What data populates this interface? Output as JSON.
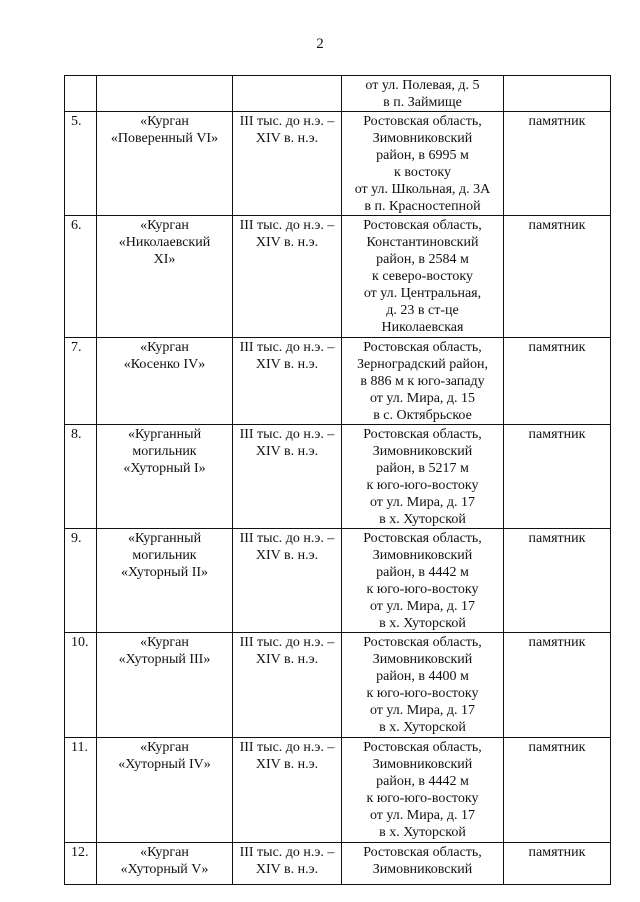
{
  "page_number": "2",
  "table": {
    "rows": [
      {
        "location": [
          "от ул. Полевая, д. 5",
          "в п. Займище"
        ]
      },
      {
        "number": "5.",
        "name": [
          "«Курган",
          "«Поверенный VI»"
        ],
        "date": [
          "III тыс. до н.э. –",
          "XIV в. н.э."
        ],
        "location": [
          "Ростовская область,",
          "Зимовниковский",
          "район, в 6995 м",
          "к востоку",
          "от ул. Школьная, д. 3А",
          "в п. Красностепной"
        ],
        "status": [
          "памятник"
        ]
      },
      {
        "number": "6.",
        "name": [
          "«Курган",
          "«Николаевский",
          "XI»"
        ],
        "date": [
          "III тыс. до н.э. –",
          "XIV в. н.э."
        ],
        "location": [
          "Ростовская область,",
          "Константиновский",
          "район, в 2584 м",
          "к северо-востоку",
          "от ул. Центральная,",
          "д. 23 в ст-це",
          "Николаевская"
        ],
        "status": [
          "памятник"
        ]
      },
      {
        "number": "7.",
        "name": [
          "«Курган",
          "«Косенко IV»"
        ],
        "date": [
          "III тыс. до н.э. –",
          "XIV в. н.э."
        ],
        "location": [
          "Ростовская область,",
          "Зерноградский район,",
          "в 886 м к юго-западу",
          "от ул. Мира, д. 15",
          "в с. Октябрьское"
        ],
        "status": [
          "памятник"
        ]
      },
      {
        "number": "8.",
        "name": [
          "«Курганный",
          "могильник",
          "«Хуторный I»"
        ],
        "date": [
          "III тыс. до н.э. –",
          "XIV в. н.э."
        ],
        "location": [
          "Ростовская область,",
          "Зимовниковский",
          "район, в 5217 м",
          "к юго-юго-востоку",
          "от ул. Мира, д. 17",
          "в х. Хуторской"
        ],
        "status": [
          "памятник"
        ]
      },
      {
        "number": "9.",
        "name": [
          "«Курганный",
          "могильник",
          "«Хуторный II»"
        ],
        "date": [
          "III тыс. до н.э. –",
          "XIV в. н.э."
        ],
        "location": [
          "Ростовская область,",
          "Зимовниковский",
          "район, в 4442 м",
          "к юго-юго-востоку",
          "от ул. Мира, д. 17",
          "в х. Хуторской"
        ],
        "status": [
          "памятник"
        ]
      },
      {
        "number": "10.",
        "name": [
          "«Курган",
          "«Хуторный III»"
        ],
        "date": [
          "III тыс. до н.э. –",
          "XIV в. н.э."
        ],
        "location": [
          "Ростовская область,",
          "Зимовниковский",
          "район, в 4400 м",
          "к юго-юго-востоку",
          "от ул. Мира, д. 17",
          "в х. Хуторской"
        ],
        "status": [
          "памятник"
        ]
      },
      {
        "number": "11.",
        "name": [
          "«Курган",
          "«Хуторный IV»"
        ],
        "date": [
          "III тыс. до н.э. –",
          "XIV в. н.э."
        ],
        "location": [
          "Ростовская область,",
          "Зимовниковский",
          "район, в 4442 м",
          "к юго-юго-востоку",
          "от ул. Мира, д. 17",
          "в х. Хуторской"
        ],
        "status": [
          "памятник"
        ]
      },
      {
        "number": "12.",
        "name": [
          "«Курган",
          "«Хуторный V»"
        ],
        "date": [
          "III тыс. до н.э. –",
          "XIV в. н.э."
        ],
        "location": [
          "Ростовская область,",
          "Зимовниковский"
        ],
        "status": [
          "памятник"
        ]
      }
    ]
  }
}
